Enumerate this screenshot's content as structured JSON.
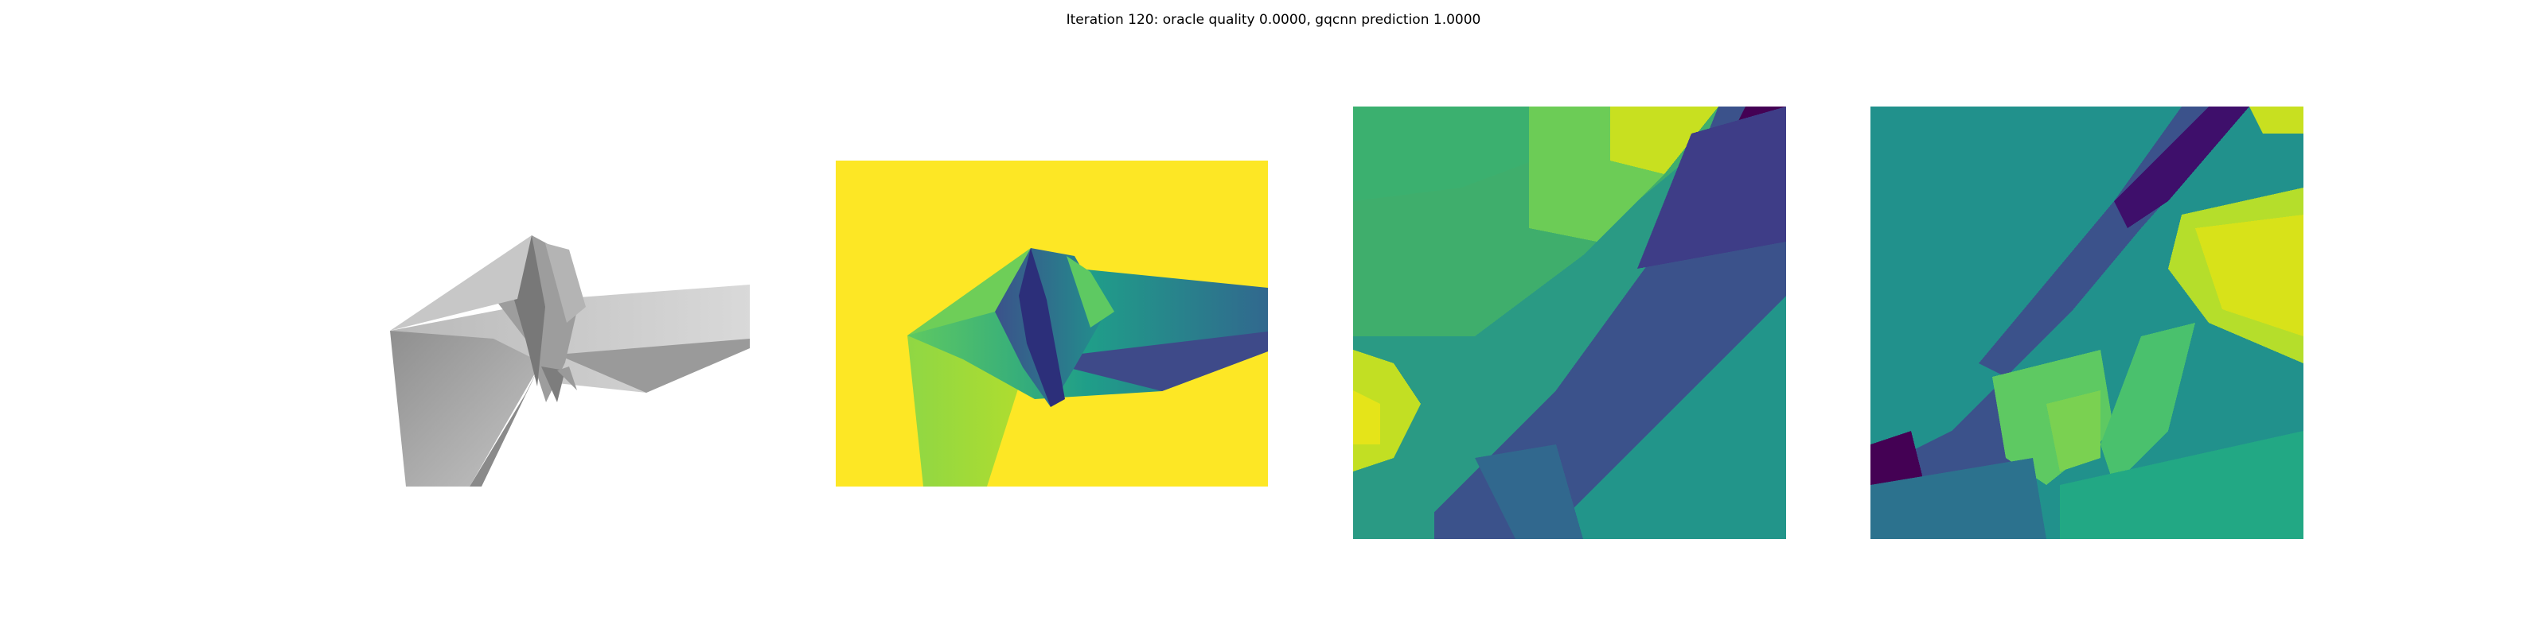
{
  "figure": {
    "title": "Iteration 120: oracle quality 0.0000, gqcnn prediction 1.0000"
  },
  "panels": [
    {
      "kind": "shaded-render",
      "description": "rendered grey polygonal object"
    },
    {
      "kind": "depth-image",
      "colormap": "viridis"
    },
    {
      "kind": "depth-crop",
      "colormap": "viridis"
    },
    {
      "kind": "depth-crop",
      "colormap": "viridis"
    }
  ],
  "colors": {
    "viridis_dark": "#440154",
    "viridis_blue": "#3b528b",
    "viridis_teal": "#21918c",
    "viridis_green": "#5ec962",
    "viridis_yellow": "#fde725",
    "grey_light": "#d8d8d8",
    "grey_mid": "#a9a9a9",
    "grey_dark": "#6f6f6f"
  }
}
